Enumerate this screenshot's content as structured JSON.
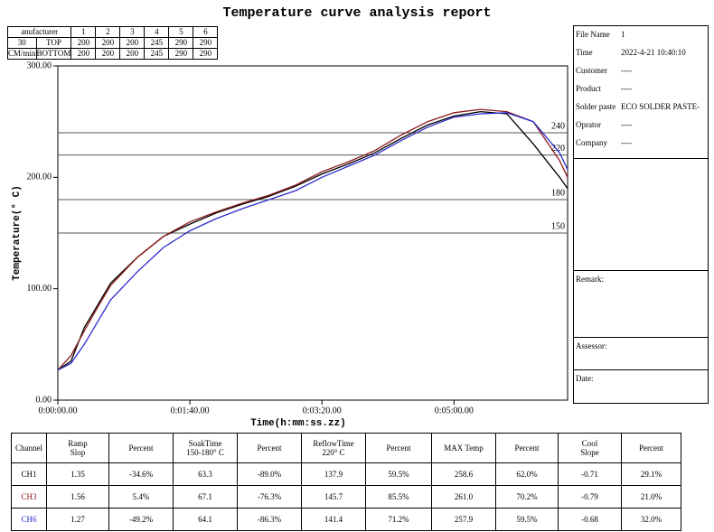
{
  "title": "Temperature curve analysis report",
  "settings_table": {
    "header_label": "anufacturer",
    "zones": [
      "1",
      "2",
      "3",
      "4",
      "5",
      "6"
    ],
    "rows": [
      {
        "speed": "30",
        "side": "TOP",
        "temps": [
          "200",
          "200",
          "200",
          "245",
          "290",
          "290"
        ]
      },
      {
        "speed": "CM/min",
        "side": "BOTTOM",
        "temps": [
          "200",
          "200",
          "200",
          "245",
          "290",
          "290"
        ]
      }
    ]
  },
  "info_panel": {
    "fields": [
      {
        "label": "File Name",
        "value": "1"
      },
      {
        "label": "Time",
        "value": "2022-4-21 10:40:10"
      },
      {
        "label": "Customer",
        "value": "----"
      },
      {
        "label": "Product",
        "value": "----"
      },
      {
        "label": "Solder paste",
        "value": "ECO SOLDER PASTE-"
      },
      {
        "label": "Oprator",
        "value": "----"
      },
      {
        "label": "Company",
        "value": "----"
      }
    ],
    "remark": "Remark:",
    "assessor": "Assessor:",
    "date": "Date:"
  },
  "chart_data": {
    "type": "line",
    "x_label": "Time(h:mm:ss.zz)",
    "y_label": "Temperature(° C)",
    "x": [
      0,
      10,
      20,
      30,
      40,
      60,
      80,
      100,
      120,
      140,
      160,
      180,
      200,
      220,
      240,
      260,
      280,
      300,
      320,
      340,
      360,
      380,
      386
    ],
    "series": [
      {
        "name": "CH1",
        "color": "#000000",
        "values": [
          27,
          35,
          65,
          85,
          105,
          128,
          147,
          158,
          168,
          176,
          183,
          192,
          203,
          212,
          222,
          235,
          247,
          255,
          259,
          257,
          230,
          200,
          190
        ]
      },
      {
        "name": "CH3",
        "color": "#8b1a1a",
        "values": [
          27,
          40,
          62,
          83,
          103,
          128,
          147,
          160,
          169,
          177,
          184,
          193,
          205,
          214,
          224,
          238,
          250,
          258,
          261,
          259,
          250,
          215,
          200
        ]
      },
      {
        "name": "CH6",
        "color": "#2b2bd0",
        "values": [
          27,
          33,
          50,
          70,
          90,
          115,
          137,
          152,
          163,
          172,
          180,
          188,
          200,
          210,
          220,
          233,
          245,
          254,
          257,
          258,
          250,
          222,
          207
        ]
      }
    ],
    "xlim": [
      0,
      386
    ],
    "ylim": [
      0,
      300
    ],
    "xticks": [
      {
        "value": 0,
        "label": "0:00:00.00"
      },
      {
        "value": 100,
        "label": "0:01:40.00"
      },
      {
        "value": 200,
        "label": "0:03:20.00"
      },
      {
        "value": 300,
        "label": "0:05:00.00"
      }
    ],
    "yticks": [
      {
        "value": 0,
        "label": "0.00"
      },
      {
        "value": 100,
        "label": "100.00"
      },
      {
        "value": 200,
        "label": "200.00"
      },
      {
        "value": 300,
        "label": "300.00"
      }
    ],
    "ref_lines": [
      240,
      220,
      180,
      150
    ],
    "ref_color": "#555555"
  },
  "results_table": {
    "header": [
      [
        "Channel"
      ],
      [
        "Ramp",
        "Slop"
      ],
      [
        "Percent"
      ],
      [
        "SoakTime",
        "150-180° C"
      ],
      [
        "Percent"
      ],
      [
        "ReflowTime",
        "220° C"
      ],
      [
        "Percent"
      ],
      [
        "MAX Temp"
      ],
      [
        "Percent"
      ],
      [
        "Cool",
        "Slope"
      ],
      [
        "Percent"
      ]
    ],
    "rows": [
      [
        "1.35",
        "-34.6%",
        "63.3",
        "-89.0%",
        "137.9",
        "59.5%",
        "258.6",
        "62.0%",
        "-0.71",
        "29.1%"
      ],
      [
        "1.56",
        "5.4%",
        "67.1",
        "-76.3%",
        "145.7",
        "85.5%",
        "261.0",
        "70.2%",
        "-0.79",
        "21.0%"
      ],
      [
        "1.27",
        "-49.2%",
        "64.1",
        "-86.3%",
        "141.4",
        "71.2%",
        "257.9",
        "59.5%",
        "-0.68",
        "32.0%"
      ]
    ]
  }
}
